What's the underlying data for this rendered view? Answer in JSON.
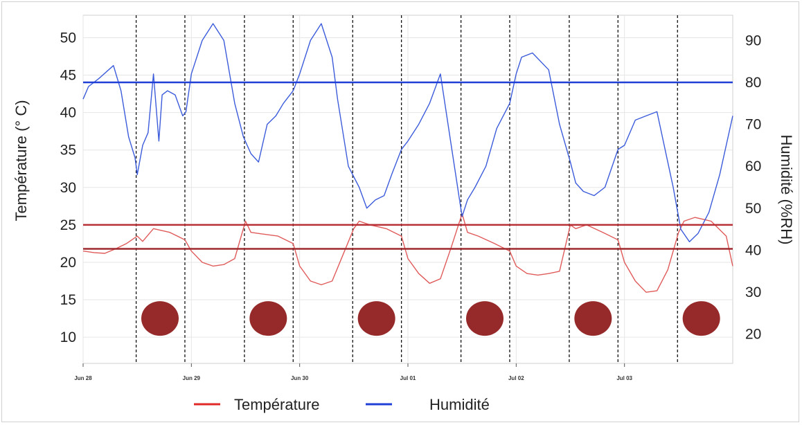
{
  "chart_data": {
    "type": "line",
    "ylabel": "Température (° C)",
    "y2label": "Humidité (%RH)",
    "ylim": [
      6.5,
      53
    ],
    "y2lim": [
      13,
      96
    ],
    "yticks": [
      "50",
      "45",
      "40",
      "35",
      "30",
      "25",
      "20",
      "15",
      "10"
    ],
    "y2ticks": [
      "90",
      "80",
      "70",
      "60",
      "50",
      "40",
      "30",
      "20"
    ],
    "xlim": [
      0,
      6
    ],
    "x_tick_labels": [
      "Jun 28",
      "Jun 29",
      "Jun 30",
      "Jul 01",
      "Jul 02",
      "Jul 03"
    ],
    "x_tick_positions": [
      0,
      1,
      2,
      3,
      4,
      5
    ],
    "night_boundaries": [
      0.49,
      0.94,
      1.49,
      1.94,
      2.49,
      2.94,
      3.49,
      3.94,
      4.49,
      4.94,
      5.49
    ],
    "night_markers_x": [
      0.71,
      1.71,
      2.71,
      3.71,
      4.71,
      5.71
    ],
    "night_marker_y": 12.5,
    "reference_lines": [
      {
        "axis": "y2",
        "value": 80,
        "color": "#1f3fd6"
      },
      {
        "axis": "y",
        "value": 25,
        "color": "#b83035"
      },
      {
        "axis": "y",
        "value": 21.8,
        "color": "#9e2a2e"
      }
    ],
    "series": [
      {
        "name": "Température",
        "axis": "y",
        "color": "#e05a5a",
        "x": [
          0,
          0.1,
          0.2,
          0.3,
          0.4,
          0.5,
          0.55,
          0.65,
          0.8,
          0.94,
          1.0,
          1.1,
          1.2,
          1.3,
          1.4,
          1.5,
          1.55,
          1.65,
          1.8,
          1.94,
          2.0,
          2.1,
          2.2,
          2.3,
          2.4,
          2.5,
          2.55,
          2.65,
          2.8,
          2.94,
          3.0,
          3.1,
          3.2,
          3.3,
          3.4,
          3.5,
          3.55,
          3.65,
          3.8,
          3.94,
          4.0,
          4.1,
          4.2,
          4.3,
          4.4,
          4.5,
          4.55,
          4.65,
          4.8,
          4.94,
          5.0,
          5.1,
          5.2,
          5.3,
          5.4,
          5.5,
          5.55,
          5.65,
          5.8,
          5.94,
          6.0
        ],
        "values": [
          21.5,
          21.3,
          21.2,
          21.8,
          22.5,
          23.5,
          22.8,
          24.5,
          24.0,
          23.0,
          21.5,
          20.0,
          19.5,
          19.7,
          20.5,
          25.5,
          24.0,
          23.8,
          23.5,
          22.5,
          19.5,
          17.5,
          17.0,
          17.5,
          21.0,
          24.5,
          25.5,
          25.0,
          24.5,
          23.5,
          20.5,
          18.5,
          17.2,
          17.8,
          22.0,
          26.5,
          24.0,
          23.5,
          22.5,
          21.5,
          19.5,
          18.5,
          18.3,
          18.5,
          18.8,
          25.0,
          24.5,
          25.0,
          24.0,
          23.0,
          20.0,
          17.5,
          16.0,
          16.2,
          19.0,
          24.0,
          25.5,
          26.0,
          25.5,
          23.5,
          19.5
        ]
      },
      {
        "name": "Humidité",
        "axis": "y2",
        "color": "#3b5bdb",
        "x": [
          0,
          0.05,
          0.15,
          0.28,
          0.35,
          0.42,
          0.48,
          0.5,
          0.55,
          0.6,
          0.65,
          0.7,
          0.73,
          0.78,
          0.85,
          0.92,
          0.95,
          1.0,
          1.1,
          1.2,
          1.3,
          1.4,
          1.48,
          1.55,
          1.62,
          1.7,
          1.78,
          1.85,
          1.94,
          2.0,
          2.1,
          2.2,
          2.3,
          2.35,
          2.45,
          2.55,
          2.62,
          2.7,
          2.78,
          2.85,
          2.94,
          3.0,
          3.1,
          3.2,
          3.3,
          3.4,
          3.5,
          3.55,
          3.62,
          3.72,
          3.82,
          3.94,
          4.0,
          4.05,
          4.15,
          4.3,
          4.4,
          4.5,
          4.55,
          4.62,
          4.72,
          4.82,
          4.94,
          5.0,
          5.1,
          5.2,
          5.3,
          5.45,
          5.52,
          5.6,
          5.68,
          5.78,
          5.88,
          6.0
        ],
        "values": [
          76,
          79,
          81,
          84,
          78,
          67,
          62,
          58,
          65,
          68,
          82,
          66,
          77,
          78,
          77,
          72,
          73,
          82,
          90,
          94,
          90,
          75,
          67,
          63,
          61,
          70,
          72,
          75,
          78,
          82,
          90,
          94,
          86,
          76,
          60,
          55,
          50,
          52,
          53,
          58,
          64,
          66,
          70,
          75,
          82,
          65,
          48,
          52,
          55,
          60,
          69,
          75,
          82,
          86,
          87,
          83,
          70,
          61,
          56,
          54,
          53,
          55,
          64,
          65,
          71,
          72,
          73,
          55,
          45,
          42,
          44,
          49,
          58,
          72
        ]
      }
    ]
  },
  "legend": {
    "items": [
      {
        "label": "Température",
        "color": "#e02a2a"
      },
      {
        "label": "Humidité",
        "color": "#1f3fd6"
      }
    ]
  }
}
